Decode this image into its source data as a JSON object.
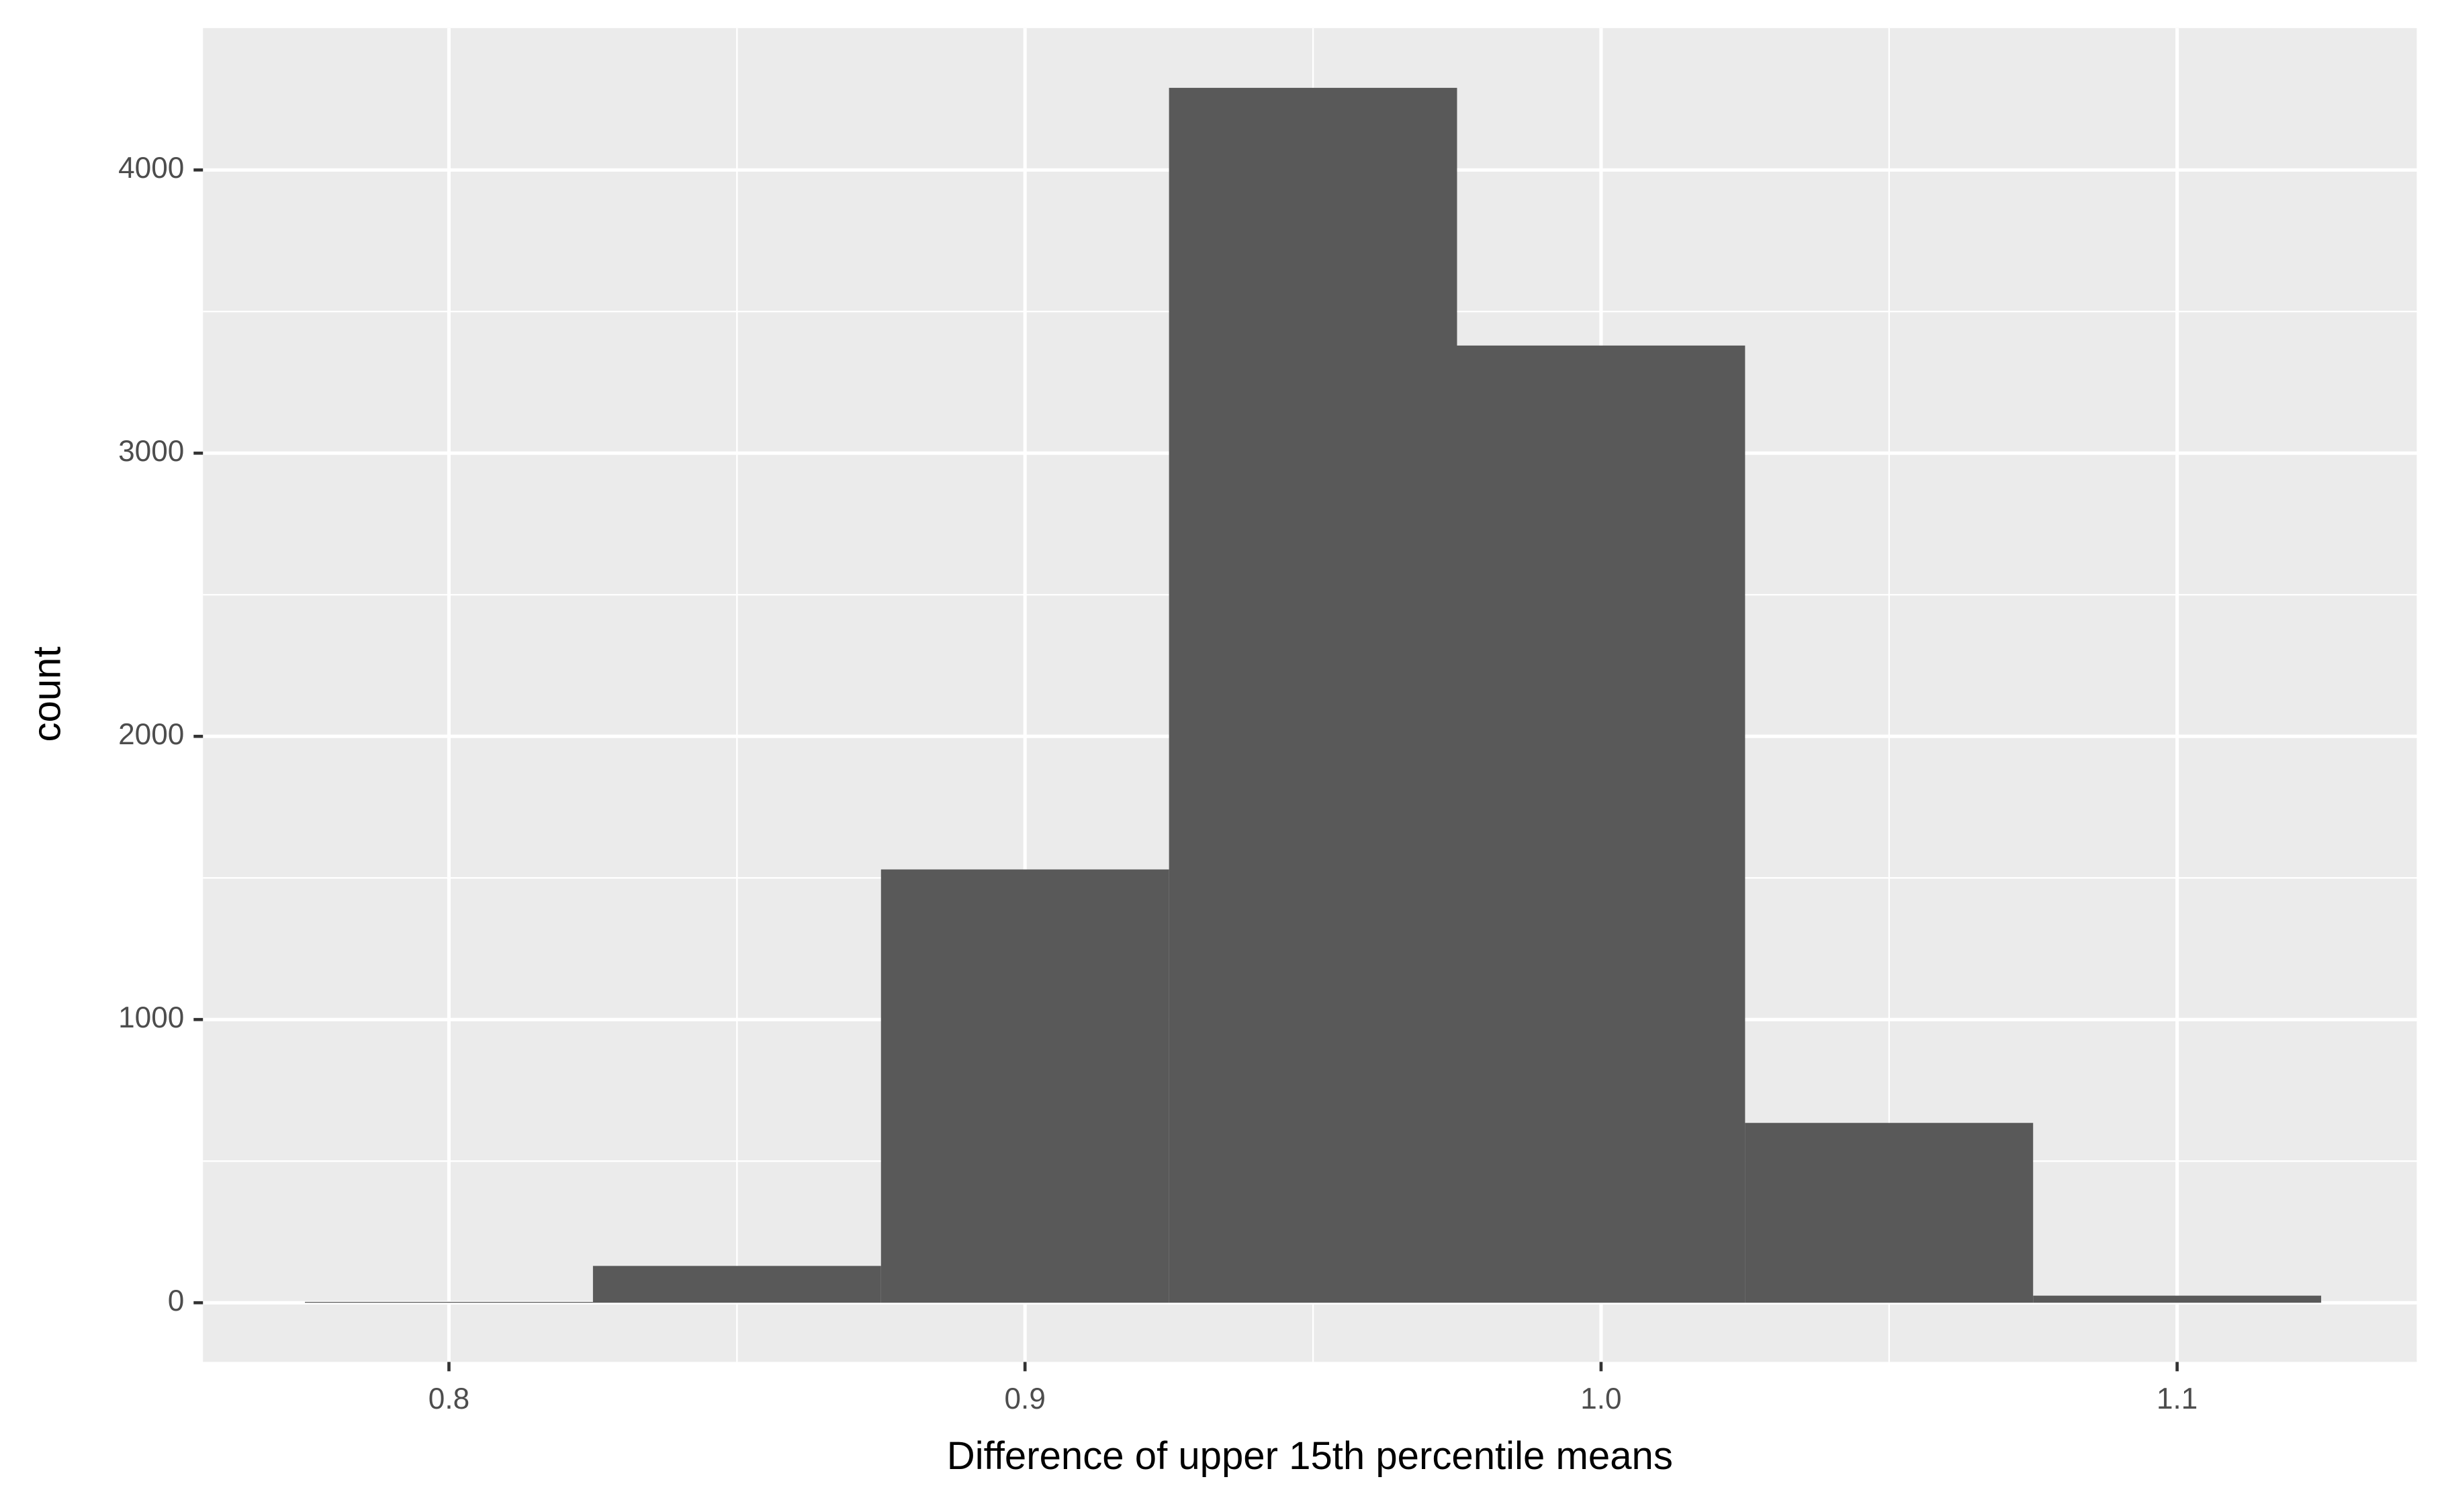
{
  "chart_data": {
    "type": "histogram",
    "x_label": "Difference of upper 15th percentile means",
    "y_label": "count",
    "bins": [
      0.775,
      0.825,
      0.875,
      0.925,
      0.975,
      1.025,
      1.075,
      1.125
    ],
    "values": [
      3,
      130,
      1530,
      4290,
      3380,
      635,
      25
    ],
    "color": "#595959",
    "xlim": [
      0.7573,
      1.1416
    ],
    "xticks": [
      0.8,
      0.9,
      {
        "value": 1,
        "label": "1.0"
      },
      1.1
    ],
    "ylim": [
      -209,
      4501
    ],
    "yticks": [
      0,
      1000,
      2000,
      3000,
      4000
    ],
    "grid": true
  }
}
